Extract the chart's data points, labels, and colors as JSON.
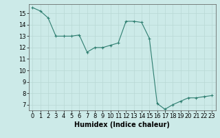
{
  "x": [
    0,
    1,
    2,
    3,
    4,
    5,
    6,
    7,
    8,
    9,
    10,
    11,
    12,
    13,
    14,
    15,
    16,
    17,
    18,
    19,
    20,
    21,
    22,
    23
  ],
  "y": [
    15.5,
    15.2,
    14.6,
    13.0,
    13.0,
    13.0,
    13.1,
    11.6,
    12.0,
    12.0,
    12.2,
    12.4,
    14.3,
    14.3,
    14.2,
    12.8,
    7.1,
    6.6,
    7.0,
    7.3,
    7.6,
    7.6,
    7.7,
    7.8
  ],
  "line_color": "#2d7d6f",
  "marker": "+",
  "marker_color": "#2d7d6f",
  "bg_color": "#cceae8",
  "grid_color": "#b8d8d4",
  "xlabel": "Humidex (Indice chaleur)",
  "xlim": [
    -0.5,
    23.5
  ],
  "ylim": [
    6.5,
    15.8
  ],
  "yticks": [
    7,
    8,
    9,
    10,
    11,
    12,
    13,
    14,
    15
  ],
  "xticks": [
    0,
    1,
    2,
    3,
    4,
    5,
    6,
    7,
    8,
    9,
    10,
    11,
    12,
    13,
    14,
    15,
    16,
    17,
    18,
    19,
    20,
    21,
    22,
    23
  ],
  "tick_label_fontsize": 6,
  "xlabel_fontsize": 7
}
